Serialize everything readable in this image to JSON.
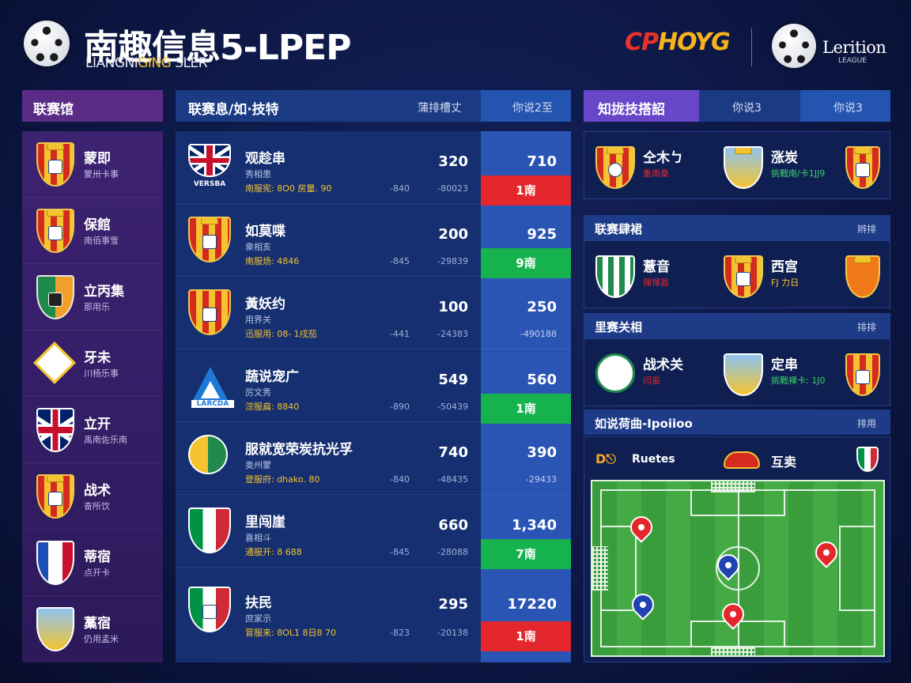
{
  "header": {
    "title": "南趣信息5-LPEP",
    "subtitle_a": "LIANGNI",
    "subtitle_hl": "GING",
    "subtitle_b": " SLER",
    "sponsor_a": "CP",
    "sponsor_b": "HOYG",
    "league_name": "Lerition",
    "league_sub": "LEAGUE"
  },
  "left": {
    "heading": "联赛馆",
    "items": [
      {
        "name": "蒙即",
        "sub": "蒙卅卡事",
        "crest": "spain-crest"
      },
      {
        "name": "保館",
        "sub": "南佰事雪",
        "crest": "spain-crest"
      },
      {
        "name": "立丙集",
        "sub": "那用乐",
        "crest": "green-shield-crest"
      },
      {
        "name": "牙未",
        "sub": "川杨乐事",
        "crest": "diamond-crest"
      },
      {
        "name": "立开",
        "sub": "禹南佐乐南",
        "crest": "uk-crest"
      },
      {
        "name": "战术",
        "sub": "奋所饮",
        "crest": "spain-crest"
      },
      {
        "name": "蒂宿",
        "sub": "点开卡",
        "crest": "blue-white-crest"
      },
      {
        "name": "藁宿",
        "sub": "仍用孟米",
        "crest": "sky-crest"
      }
    ]
  },
  "center": {
    "heading": "联赛息/如·技特",
    "col_b": "蒲排槽丈",
    "col_c": "你说2至",
    "rows": [
      {
        "name": "观趁串",
        "sub": "秀相患",
        "stat": "南服宪: 8O0 房量. 90",
        "v1": "320",
        "a1": "-840",
        "a2": "-80023",
        "v2": "710",
        "a3": "",
        "pill": "1南",
        "pill_color": "red",
        "logo": "uk-crest",
        "logo_text": "VERSBA"
      },
      {
        "name": "如莫喋",
        "sub": "衆相亥",
        "stat": "南服炀: 4846",
        "v1": "200",
        "a1": "-845",
        "a2": "-29839",
        "v2": "925",
        "a3": "",
        "pill": "9南",
        "pill_color": "green",
        "logo": "spain-crest",
        "logo_text": ""
      },
      {
        "name": "黃妖约",
        "sub": "用界关",
        "stat": "迅服用: 08- 1戍茄",
        "v1": "100",
        "a1": "-441",
        "a2": "-24383",
        "v2": "250",
        "a3": "-490188",
        "pill": "",
        "pill_color": "",
        "logo": "spain-crest",
        "logo_text": ""
      },
      {
        "name": "蔬说宠广",
        "sub": "厉文秀",
        "stat": "淙服扁: 8840",
        "v1": "549",
        "a1": "-890",
        "a2": "-50439",
        "v2": "560",
        "a3": "",
        "pill": "1南",
        "pill_color": "green",
        "logo": "triangle-crest",
        "logo_text": "LARCDA"
      },
      {
        "name": "服就宽荣炭抗光孚",
        "sub": "奥州蒙",
        "stat": "登服府: dhako. 80",
        "v1": "740",
        "a1": "-840",
        "a2": "-48435",
        "v2": "390",
        "a3": "-29433",
        "pill": "",
        "pill_color": "",
        "logo": "circle-green-crest",
        "logo_text": ""
      },
      {
        "name": "里闯崖",
        "sub": "喜相斗",
        "stat": "通服开: 8 688",
        "v1": "660",
        "a1": "-845",
        "a2": "-28088",
        "v2": "1,340",
        "a3": "",
        "pill": "7南",
        "pill_color": "green",
        "logo": "italy-crest",
        "logo_text": ""
      },
      {
        "name": "扶民",
        "sub": "庶家示",
        "stat": "冒服来: 8OL1 8日8 70",
        "v1": "295",
        "a1": "-823",
        "a2": "-20138",
        "v2": "17220",
        "a3": "",
        "pill": "1南",
        "pill_color": "red",
        "logo": "italy-crest",
        "logo_text": ""
      }
    ]
  },
  "right": {
    "tab_active": "知拢技搭詔",
    "tab_2": "你说3",
    "tab_3": "你说3",
    "match1": {
      "n1": "仝木ㄅ",
      "s1": "重南桑",
      "n2": "涨炭",
      "s2": "挑戰南/卡1JJ9"
    },
    "bar1": {
      "left": "联赛肆裙",
      "right": "辫排"
    },
    "match2": {
      "n1": "薏音",
      "s1": "揮揮昌",
      "n2": "西宫",
      "s2": "FJ 力日"
    },
    "bar2": {
      "left": "里赛关相",
      "right": "排排"
    },
    "match3": {
      "n1": "战术关",
      "s1": "闫宙",
      "n2": "定串",
      "s2": "挑戰裸卡: 1J0"
    },
    "bar3": {
      "left": "如说荷曲-Ipoiioo",
      "right": "排用"
    },
    "pitch": {
      "kicker_logo": "D⎋",
      "kicker_text": "Ruetes",
      "opponent": "互卖"
    }
  },
  "colors": {
    "accent_purple": "#6747c8",
    "win_green": "#16b24e",
    "loss_red": "#e4262d",
    "highlight_blue": "#2a55b4"
  }
}
